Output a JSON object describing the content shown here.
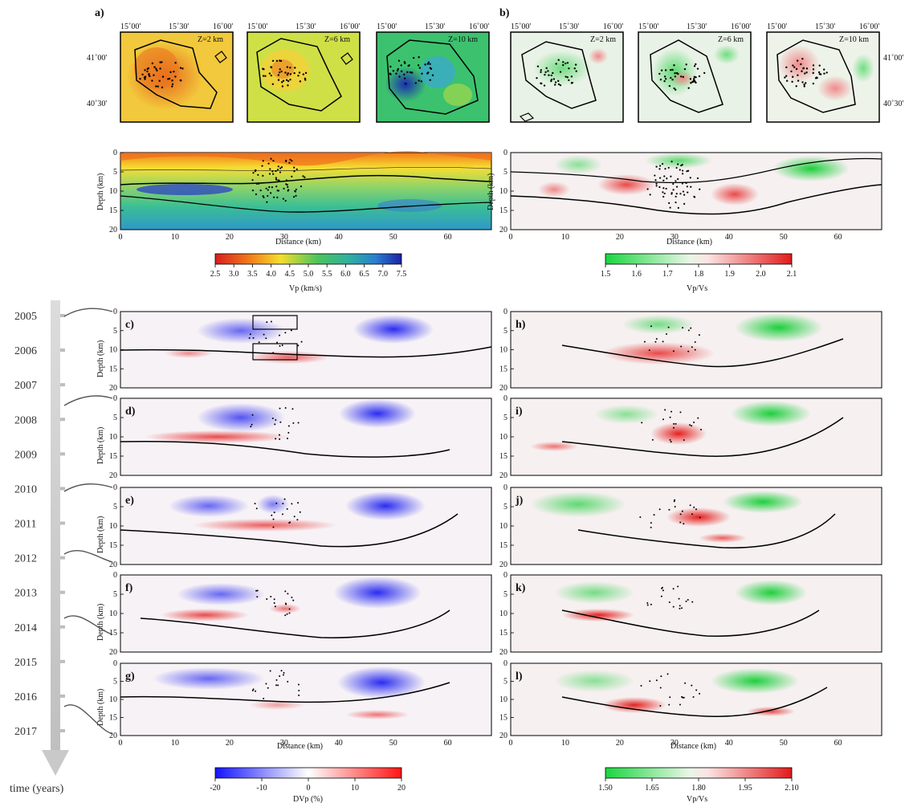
{
  "labels": {
    "a": "a)",
    "b": "b)",
    "c": "c)",
    "d": "d)",
    "e": "e)",
    "f": "f)",
    "g": "g)",
    "h": "h)",
    "i": "i)",
    "j": "j)",
    "k": "k)",
    "l": "l)"
  },
  "maps": {
    "lon_ticks": [
      "15˚00'",
      "15˚30'",
      "16˚00'"
    ],
    "lat_ticks": [
      "41˚00'",
      "40˚30'"
    ],
    "depths": [
      "Z=2 km",
      "Z=6 km",
      "Z=10 km"
    ]
  },
  "sections": {
    "depth_label": "Depth (km)",
    "distance_label": "Distance (km)",
    "depth_ticks": [
      "0",
      "5",
      "10",
      "15",
      "20"
    ],
    "distance_ticks": [
      "0",
      "10",
      "20",
      "30",
      "40",
      "50",
      "60"
    ]
  },
  "colorbars": {
    "vp": {
      "label": "Vp (km/s)",
      "ticks": [
        "2.5",
        "3.0",
        "3.5",
        "4.0",
        "4.5",
        "5.0",
        "5.5",
        "6.0",
        "6.5",
        "7.0",
        "7.5"
      ]
    },
    "vpvs_top": {
      "label": "Vp/Vs",
      "ticks": [
        "1.5",
        "1.6",
        "1.7",
        "1.8",
        "1.9",
        "2.0",
        "2.1"
      ]
    },
    "dvp": {
      "label": "DVp (%)",
      "ticks": [
        "-20",
        "-10",
        "0",
        "10",
        "20"
      ]
    },
    "vpvs_bottom": {
      "label": "Vp/Vs",
      "ticks": [
        "1.50",
        "1.65",
        "1.80",
        "1.95",
        "2.10"
      ]
    }
  },
  "timeline": {
    "years": [
      "2005",
      "2006",
      "2007",
      "2008",
      "2009",
      "2010",
      "2011",
      "2012",
      "2013",
      "2014",
      "2015",
      "2016",
      "2017"
    ],
    "axis_label": "time (years)"
  },
  "colors": {
    "red": "#e02020",
    "orange": "#f08a1c",
    "yellow": "#f4e13a",
    "green": "#3fbf6a",
    "cyan": "#32a6c8",
    "blue": "#1d2fb5",
    "vpvs_green": "#22d84a",
    "vpvs_red": "#e81e1e",
    "dvp_blue": "#2020ff",
    "dvp_red": "#ff2020"
  }
}
